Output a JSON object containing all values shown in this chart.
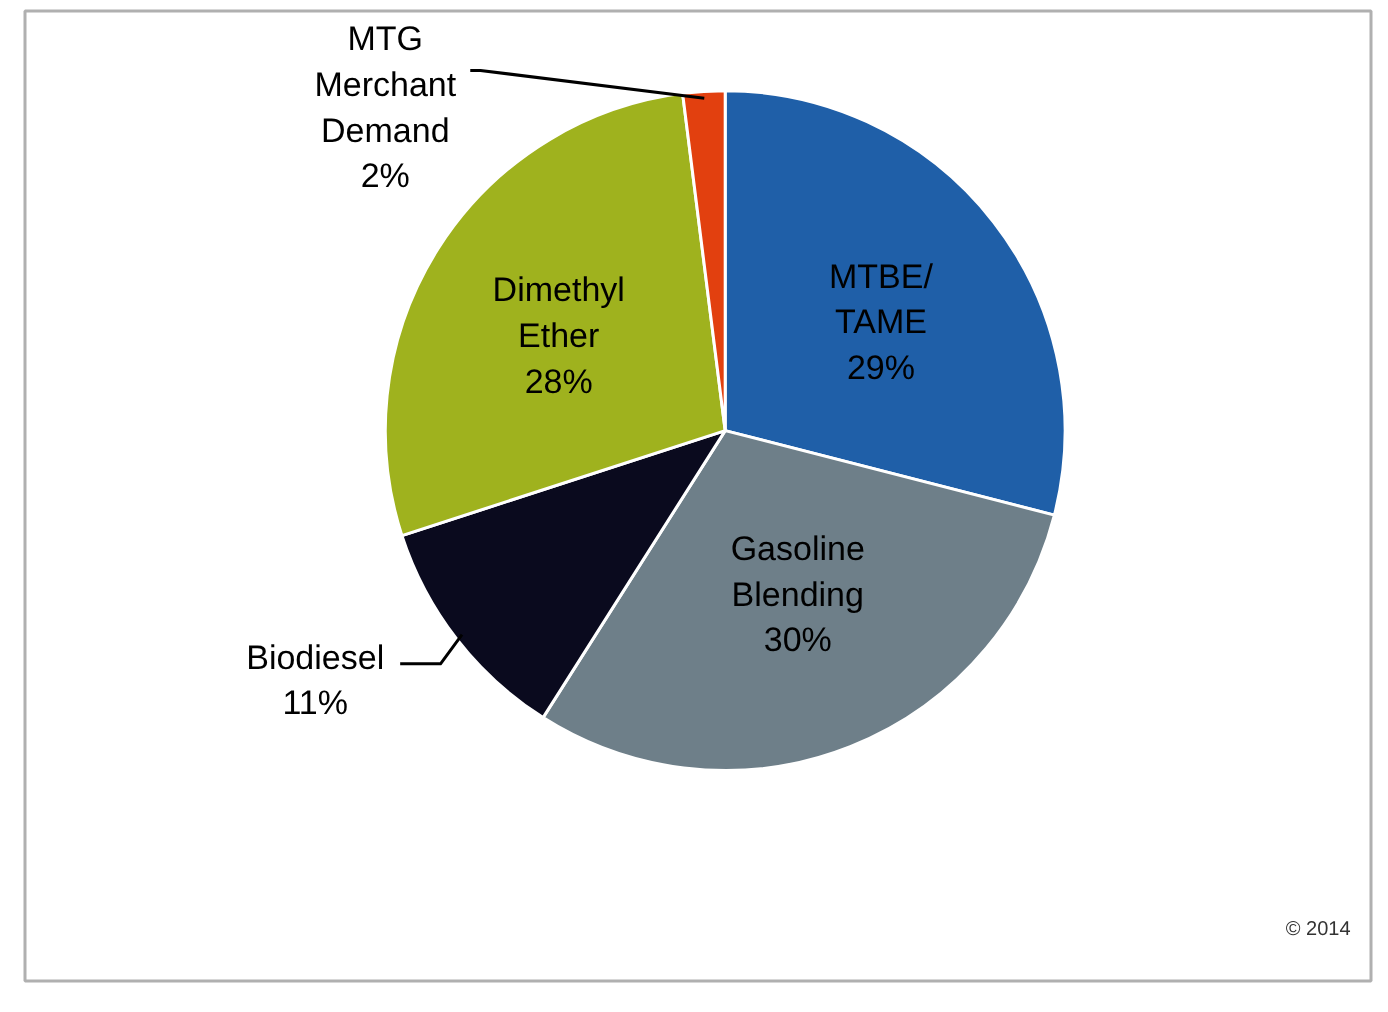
{
  "chart_data": {
    "type": "pie",
    "categories": [
      "MTBE/TAME",
      "Gasoline Blending",
      "Biodiesel",
      "Dimethyl Ether",
      "MTG Merchant Demand"
    ],
    "values": [
      29,
      30,
      11,
      28,
      2
    ],
    "colors": [
      "#1f5fa8",
      "#6e7f89",
      "#0a0a1e",
      "#9fb21e",
      "#e2400f"
    ],
    "value_labels": [
      "29%",
      "30%",
      "11%",
      "28%",
      "2%"
    ],
    "annotations": [
      "© 2014"
    ]
  }
}
